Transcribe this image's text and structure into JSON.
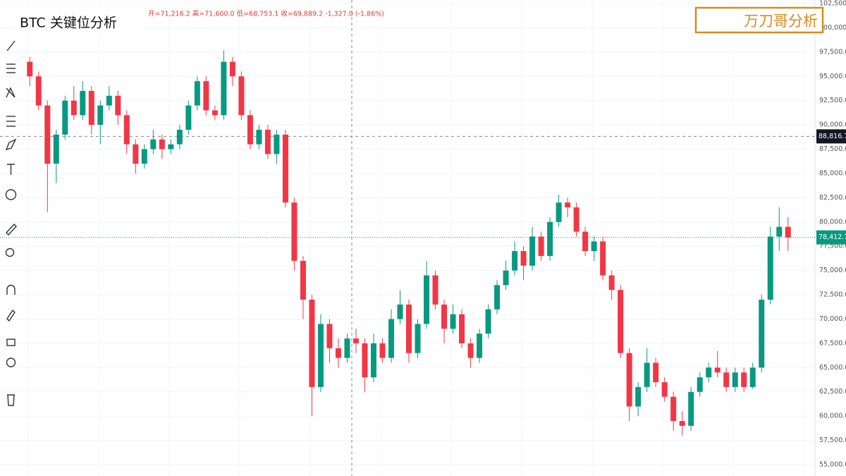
{
  "chart_data": {
    "type": "candlestick",
    "title": "BTC 关键位分析",
    "ohlc_header": "开=71,216.2 高=71,600.0 低=68,753.1 收=69,889.2 -1,327.0 (-1.86%)",
    "watermark": "万刀哥分析",
    "up_color": "#089981",
    "down_color": "#f23645",
    "ylim": [
      55000,
      102500
    ],
    "yticks": [
      {
        "value": 55000,
        "label": "55,000.0"
      },
      {
        "value": 57500,
        "label": "57,500.0"
      },
      {
        "value": 60000,
        "label": "60,000.0"
      },
      {
        "value": 62500,
        "label": "62,500.0"
      },
      {
        "value": 65000,
        "label": "65,000.0"
      },
      {
        "value": 67500,
        "label": "67,500.0"
      },
      {
        "value": 70000,
        "label": "70,000.0"
      },
      {
        "value": 72500,
        "label": "72,500.0"
      },
      {
        "value": 75000,
        "label": "75,000.0"
      },
      {
        "value": 77500,
        "label": "77,500.0"
      },
      {
        "value": 80000,
        "label": "80,000.0"
      },
      {
        "value": 82500,
        "label": "82,500.0"
      },
      {
        "value": 85000,
        "label": "85,000.0"
      },
      {
        "value": 87500,
        "label": "87,500.0"
      },
      {
        "value": 90000,
        "label": "90,000.0"
      },
      {
        "value": 92500,
        "label": "92,500.0"
      },
      {
        "value": 95000,
        "label": "95,000.0"
      },
      {
        "value": 97500,
        "label": "97,500.0"
      },
      {
        "value": 100000,
        "label": "100,000.0"
      },
      {
        "value": 102500,
        "label": "102,500.0"
      }
    ],
    "grid": true,
    "crosshair": {
      "value": 88816.7,
      "label": "88,816.7"
    },
    "last_price": {
      "value": 78412.7,
      "label": "78,412.7"
    },
    "open": [
      96500,
      95000,
      92000,
      86000,
      89000,
      92500,
      91000,
      93500,
      90000,
      92000,
      93000,
      91000,
      88000,
      86000,
      87500,
      88500,
      87500,
      88000,
      89500,
      92000,
      94500,
      91500,
      91000,
      96500,
      95000,
      91000,
      88000,
      89500,
      87000,
      89000,
      82000,
      76000,
      72000,
      63000,
      69500,
      67000,
      66000,
      68000,
      67500,
      64000,
      67500,
      66000,
      70000,
      71500,
      66500,
      69500,
      74500,
      71500,
      69000,
      70500,
      67500,
      66000,
      68500,
      71000,
      73500,
      75000,
      77000,
      75500,
      78500,
      76500,
      80000,
      82000,
      81500,
      79000,
      77000,
      78000,
      74500,
      73000,
      66500,
      61000,
      63000,
      65500,
      63500,
      62000,
      59500,
      59000,
      62500,
      64000,
      65000,
      64500,
      63000,
      64500,
      63000,
      65000,
      72000,
      78500,
      79500
    ],
    "high": [
      97000,
      95500,
      92500,
      89500,
      93000,
      94000,
      94500,
      94000,
      92500,
      94000,
      93500,
      91500,
      88500,
      88000,
      89500,
      89000,
      88500,
      90000,
      92500,
      95000,
      95000,
      92000,
      97700,
      97000,
      95500,
      91500,
      90000,
      90000,
      89500,
      89500,
      82500,
      76500,
      72500,
      70500,
      70000,
      68000,
      68500,
      69000,
      68000,
      68500,
      68000,
      71000,
      73000,
      72000,
      70000,
      76000,
      75000,
      72000,
      71500,
      71000,
      68000,
      69000,
      71500,
      74000,
      76000,
      78000,
      77500,
      79500,
      79000,
      80500,
      82800,
      82500,
      82000,
      79500,
      78500,
      78500,
      75000,
      73500,
      67000,
      63500,
      67000,
      66000,
      64000,
      62500,
      60500,
      63000,
      64500,
      65500,
      66700,
      65000,
      65000,
      65000,
      65500,
      72500,
      79500,
      81500,
      80500
    ],
    "low": [
      94000,
      91500,
      81000,
      84000,
      88500,
      90500,
      90500,
      89000,
      88000,
      91500,
      90000,
      87000,
      85000,
      85500,
      87000,
      86500,
      87000,
      87500,
      89000,
      91500,
      91000,
      90500,
      90500,
      94000,
      90500,
      87500,
      87500,
      86500,
      86000,
      81500,
      75000,
      70000,
      60000,
      62500,
      65500,
      65000,
      65500,
      66500,
      62500,
      63500,
      65500,
      65500,
      69500,
      65500,
      66000,
      69000,
      71000,
      67500,
      68500,
      67000,
      65000,
      65500,
      68000,
      70500,
      73000,
      74500,
      74000,
      75000,
      76000,
      76000,
      79500,
      80500,
      78500,
      76500,
      76000,
      74000,
      72000,
      66000,
      59500,
      60000,
      62500,
      63000,
      61500,
      58500,
      58000,
      58500,
      62000,
      63500,
      64000,
      62500,
      62500,
      62500,
      62800,
      64500,
      71500,
      77000,
      77000
    ],
    "close": [
      95000,
      92000,
      86000,
      89000,
      92500,
      91000,
      93500,
      90000,
      92000,
      93000,
      91000,
      88000,
      86000,
      87500,
      88500,
      87500,
      88000,
      89500,
      92000,
      94500,
      91500,
      91000,
      96500,
      95000,
      91000,
      88000,
      89500,
      87000,
      89000,
      82000,
      76000,
      72000,
      63000,
      69500,
      67000,
      66000,
      68000,
      67500,
      64000,
      67500,
      66000,
      70000,
      71500,
      66500,
      69500,
      74500,
      71500,
      69000,
      70500,
      67500,
      66000,
      68500,
      71000,
      73500,
      75000,
      77000,
      75500,
      78500,
      76500,
      80000,
      82000,
      81500,
      79000,
      77000,
      78000,
      74500,
      73000,
      66500,
      61000,
      63000,
      65500,
      63500,
      62000,
      59500,
      59000,
      62500,
      64000,
      65000,
      64500,
      63000,
      64500,
      63000,
      65000,
      72000,
      78500,
      79500,
      78412.7
    ]
  }
}
